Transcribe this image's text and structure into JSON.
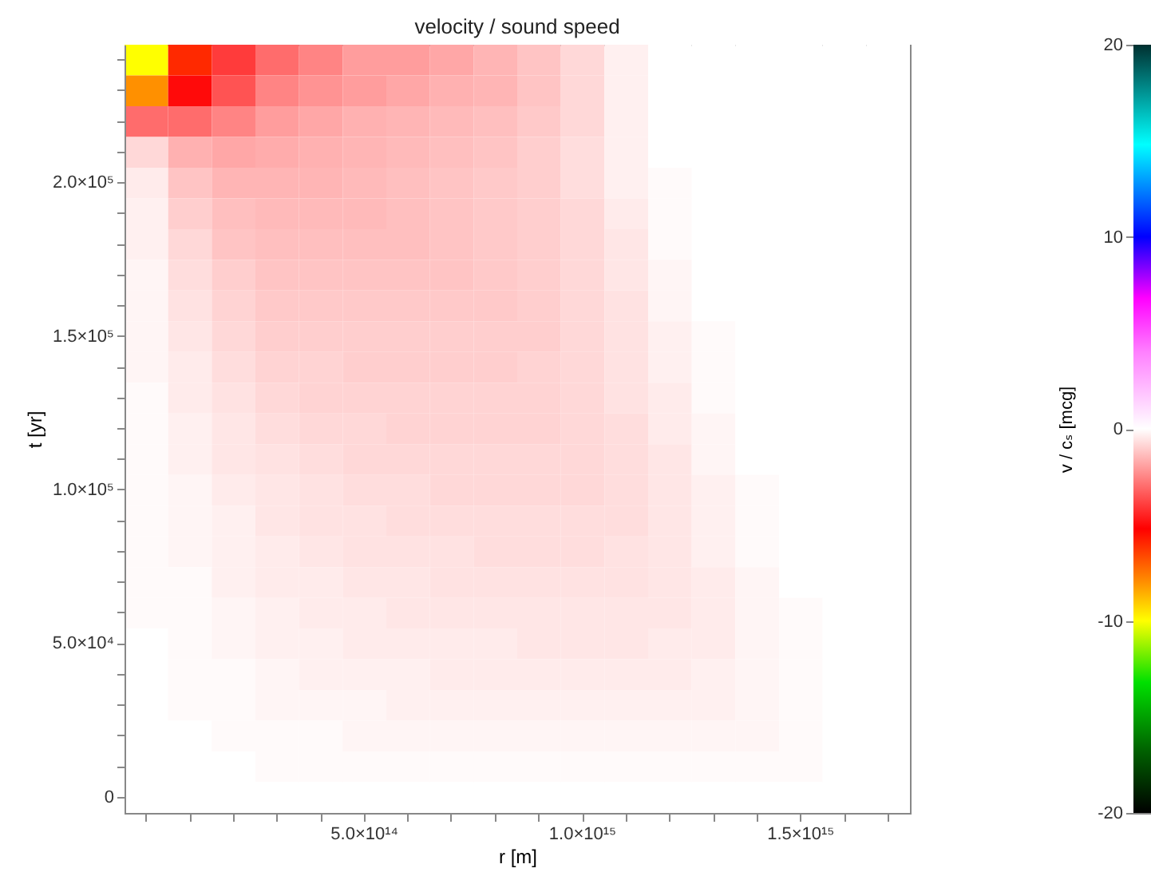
{
  "chart_data": {
    "type": "heatmap",
    "title": "velocity / sound speed",
    "xlabel": "r [m]",
    "ylabel": "t [yr]",
    "clabel": "v / cₛ [mcg]",
    "categories": [
      null,
      null,
      null,
      null,
      null,
      "5.0×10¹⁴",
      null,
      null,
      null,
      null,
      "1.0×10¹⁵",
      null,
      null,
      null,
      null,
      "1.5×10¹⁵",
      null,
      null
    ],
    "y_categories": [
      null,
      null,
      null,
      null,
      "2.0×10⁵",
      null,
      null,
      null,
      null,
      "1.5×10⁵",
      null,
      null,
      null,
      null,
      "1.0×10⁵",
      null,
      null,
      null,
      null,
      "5.0×10⁴",
      null,
      null,
      null,
      null,
      "0"
    ],
    "cells": [
      [
        -10,
        -6,
        -4,
        -3,
        -2.5,
        -2,
        -2,
        -1.8,
        -1.5,
        -1.2,
        -0.8,
        -0.3,
        0,
        0,
        0,
        0,
        0,
        0
      ],
      [
        -8,
        -5,
        -3.5,
        -2.5,
        -2.2,
        -2,
        -1.8,
        -1.6,
        -1.5,
        -1.2,
        -0.8,
        -0.3,
        0,
        0,
        0,
        0,
        0,
        0
      ],
      [
        -3,
        -3,
        -2.5,
        -2,
        -1.8,
        -1.6,
        -1.5,
        -1.4,
        -1.3,
        -1.1,
        -0.8,
        -0.3,
        0,
        0,
        0,
        0,
        0,
        0
      ],
      [
        -0.8,
        -1.6,
        -1.8,
        -1.7,
        -1.6,
        -1.5,
        -1.4,
        -1.3,
        -1.2,
        -1,
        -0.7,
        -0.3,
        0,
        0,
        0,
        0,
        0,
        0
      ],
      [
        -0.4,
        -1.2,
        -1.5,
        -1.5,
        -1.5,
        -1.4,
        -1.3,
        -1.2,
        -1.1,
        -1,
        -0.7,
        -0.3,
        -0.1,
        0,
        0,
        0,
        0,
        0
      ],
      [
        -0.3,
        -1,
        -1.3,
        -1.4,
        -1.4,
        -1.4,
        -1.3,
        -1.2,
        -1.1,
        -1,
        -0.8,
        -0.4,
        -0.1,
        0,
        0,
        0,
        0,
        0
      ],
      [
        -0.3,
        -0.8,
        -1.2,
        -1.3,
        -1.3,
        -1.3,
        -1.3,
        -1.2,
        -1.1,
        -1,
        -0.8,
        -0.5,
        -0.1,
        0,
        0,
        0,
        0,
        0
      ],
      [
        -0.2,
        -0.7,
        -1,
        -1.2,
        -1.2,
        -1.2,
        -1.2,
        -1.2,
        -1.1,
        -1,
        -0.8,
        -0.5,
        -0.2,
        0,
        0,
        0,
        0,
        0
      ],
      [
        -0.2,
        -0.6,
        -0.9,
        -1.1,
        -1.1,
        -1.1,
        -1.1,
        -1.1,
        -1.1,
        -1,
        -0.8,
        -0.6,
        -0.2,
        0,
        0,
        0,
        0,
        0
      ],
      [
        -0.2,
        -0.5,
        -0.8,
        -1,
        -1,
        -1,
        -1,
        -1,
        -1,
        -1,
        -0.8,
        -0.6,
        -0.3,
        -0.1,
        0,
        0,
        0,
        0
      ],
      [
        -0.2,
        -0.4,
        -0.7,
        -0.9,
        -0.9,
        -1,
        -1,
        -1,
        -1,
        -0.9,
        -0.8,
        -0.6,
        -0.3,
        -0.1,
        0,
        0,
        0,
        0
      ],
      [
        -0.1,
        -0.4,
        -0.6,
        -0.8,
        -0.9,
        -0.9,
        -0.9,
        -0.9,
        -0.9,
        -0.9,
        -0.8,
        -0.6,
        -0.4,
        -0.1,
        0,
        0,
        0,
        0
      ],
      [
        -0.1,
        -0.3,
        -0.5,
        -0.7,
        -0.8,
        -0.8,
        -0.9,
        -0.9,
        -0.9,
        -0.9,
        -0.8,
        -0.7,
        -0.4,
        -0.2,
        0,
        0,
        0,
        0
      ],
      [
        -0.1,
        -0.3,
        -0.5,
        -0.6,
        -0.7,
        -0.8,
        -0.8,
        -0.8,
        -0.8,
        -0.8,
        -0.8,
        -0.7,
        -0.5,
        -0.2,
        0,
        0,
        0,
        0
      ],
      [
        -0.1,
        -0.2,
        -0.4,
        -0.5,
        -0.6,
        -0.7,
        -0.7,
        -0.8,
        -0.8,
        -0.8,
        -0.8,
        -0.7,
        -0.5,
        -0.3,
        -0.1,
        0,
        0,
        0
      ],
      [
        -0.1,
        -0.2,
        -0.3,
        -0.5,
        -0.6,
        -0.6,
        -0.7,
        -0.7,
        -0.7,
        -0.7,
        -0.7,
        -0.7,
        -0.5,
        -0.3,
        -0.1,
        0,
        0,
        0
      ],
      [
        -0.1,
        -0.2,
        -0.3,
        -0.4,
        -0.5,
        -0.6,
        -0.6,
        -0.6,
        -0.7,
        -0.7,
        -0.7,
        -0.6,
        -0.5,
        -0.3,
        -0.1,
        0,
        0,
        0
      ],
      [
        -0.1,
        -0.1,
        -0.3,
        -0.4,
        -0.4,
        -0.5,
        -0.5,
        -0.6,
        -0.6,
        -0.6,
        -0.6,
        -0.6,
        -0.5,
        -0.4,
        -0.2,
        0,
        0,
        0
      ],
      [
        -0.1,
        -0.1,
        -0.2,
        -0.3,
        -0.4,
        -0.4,
        -0.5,
        -0.5,
        -0.5,
        -0.5,
        -0.5,
        -0.5,
        -0.5,
        -0.4,
        -0.2,
        -0.1,
        0,
        0
      ],
      [
        0,
        -0.1,
        -0.2,
        -0.3,
        -0.3,
        -0.4,
        -0.4,
        -0.4,
        -0.4,
        -0.5,
        -0.5,
        -0.5,
        -0.4,
        -0.4,
        -0.2,
        -0.1,
        0,
        0
      ],
      [
        0,
        -0.1,
        -0.1,
        -0.2,
        -0.3,
        -0.3,
        -0.3,
        -0.4,
        -0.4,
        -0.4,
        -0.4,
        -0.4,
        -0.4,
        -0.3,
        -0.2,
        -0.1,
        0,
        0
      ],
      [
        0,
        -0.1,
        -0.1,
        -0.2,
        -0.2,
        -0.2,
        -0.3,
        -0.3,
        -0.3,
        -0.3,
        -0.3,
        -0.3,
        -0.3,
        -0.3,
        -0.2,
        -0.1,
        0,
        0
      ],
      [
        0,
        0,
        -0.1,
        -0.1,
        -0.1,
        -0.2,
        -0.2,
        -0.2,
        -0.2,
        -0.2,
        -0.2,
        -0.2,
        -0.2,
        -0.2,
        -0.2,
        -0.1,
        0,
        0
      ],
      [
        0,
        0,
        0,
        -0.1,
        -0.1,
        -0.1,
        -0.1,
        -0.1,
        -0.1,
        -0.1,
        -0.1,
        -0.1,
        -0.1,
        -0.1,
        -0.1,
        -0.1,
        0,
        0
      ],
      [
        0,
        0,
        0,
        0,
        0,
        0,
        0,
        0,
        0,
        0,
        0,
        0,
        0,
        0,
        0,
        0,
        0,
        0
      ]
    ],
    "clim": [
      -20,
      20
    ],
    "cticks": [
      -20,
      -10,
      0,
      10,
      20
    ]
  }
}
